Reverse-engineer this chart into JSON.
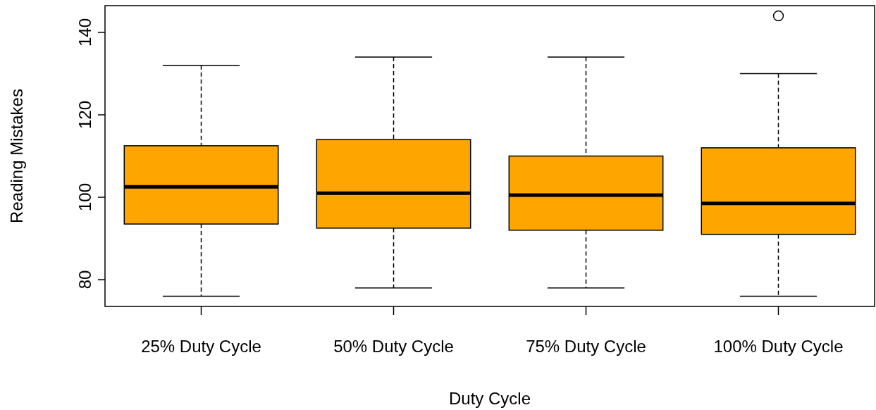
{
  "chart_data": {
    "type": "box",
    "xlabel": "Duty Cycle",
    "ylabel": "Reading Mistakes",
    "categories": [
      "25% Duty Cycle",
      "50% Duty Cycle",
      "75% Duty Cycle",
      "100% Duty Cycle"
    ],
    "color": "#ffa500",
    "boxes": [
      {
        "low": 76,
        "q1": 93.5,
        "median": 102.5,
        "q3": 112.5,
        "high": 132
      },
      {
        "low": 78,
        "q1": 92.5,
        "median": 101,
        "q3": 114,
        "high": 134
      },
      {
        "low": 78,
        "q1": 92,
        "median": 100.5,
        "q3": 110,
        "high": 134
      },
      {
        "low": 76,
        "q1": 91,
        "median": 98.5,
        "q3": 112,
        "high": 130,
        "outliers": [
          144
        ]
      }
    ],
    "ylim": [
      73.5,
      146.5
    ],
    "yticks": [
      80,
      100,
      120,
      140
    ],
    "grid": false
  }
}
